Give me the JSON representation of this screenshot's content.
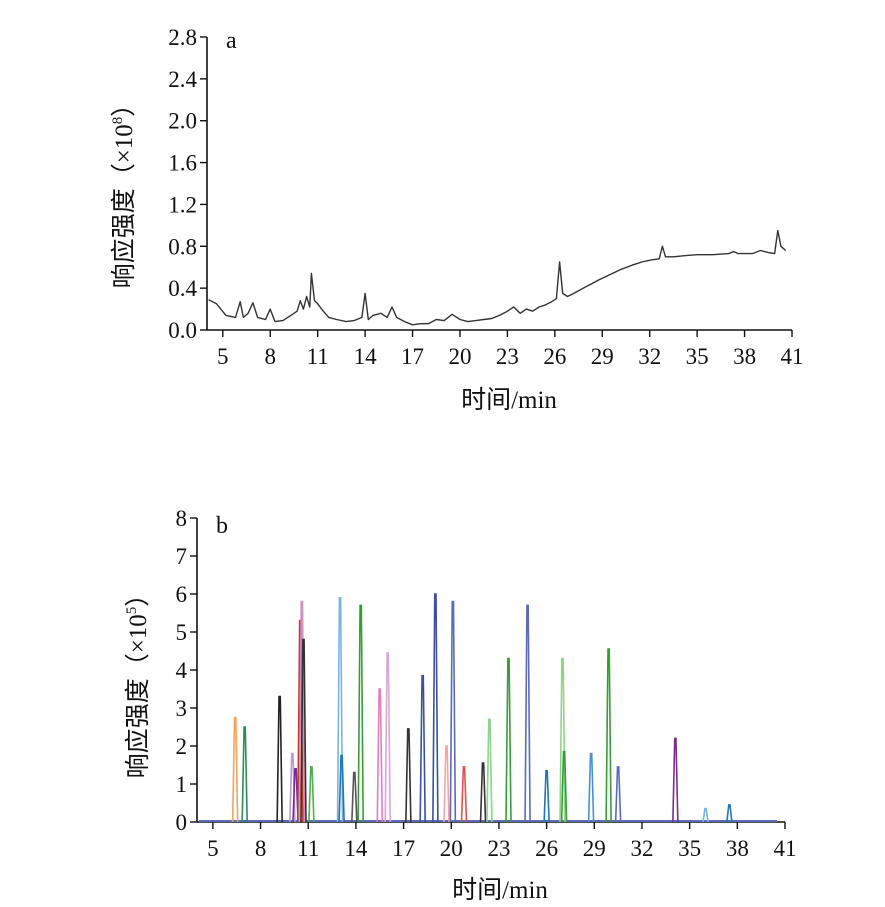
{
  "chart_data": [
    {
      "type": "line",
      "panel_label": "a",
      "xlabel": "时间/min",
      "ylabel": "响应强度（×10⁸）",
      "ylabel_prefix": "响应强度（×10",
      "ylabel_exp": "8",
      "ylabel_suffix": "）",
      "x_ticks": [
        "5",
        "8",
        "11",
        "14",
        "17",
        "20",
        "23",
        "26",
        "29",
        "32",
        "35",
        "38",
        "41"
      ],
      "y_ticks": [
        "0.0",
        "0.4",
        "0.8",
        "1.2",
        "1.6",
        "2.0",
        "2.4",
        "2.8"
      ],
      "xlim": [
        4,
        41
      ],
      "ylim": [
        0,
        2.8
      ],
      "grid": false,
      "color": "#333333",
      "series": [
        {
          "x": [
            4.1,
            4.6,
            5.2,
            5.8,
            6.1,
            6.3,
            6.6,
            6.9,
            7.2,
            7.7,
            8.0,
            8.3,
            8.8,
            9.3,
            9.7,
            9.9,
            10.1,
            10.3,
            10.5,
            10.6,
            10.8,
            11.0,
            11.3,
            11.7,
            12.2,
            12.8,
            13.3,
            13.8,
            14.0,
            14.2,
            14.5,
            15.0,
            15.4,
            15.7,
            16.0,
            16.5,
            17.0,
            17.5,
            18.0,
            18.5,
            19.0,
            19.5,
            20.0,
            20.5,
            21.0,
            21.5,
            22.0,
            22.5,
            23.0,
            23.4,
            23.8,
            24.2,
            24.6,
            25.0,
            25.4,
            25.8,
            26.1,
            26.3,
            26.5,
            26.8,
            27.2,
            27.8,
            28.3,
            28.8,
            29.5,
            30.2,
            30.9,
            31.5,
            32.1,
            32.6,
            32.8,
            33.0,
            33.5,
            34.2,
            35.0,
            36.0,
            37.0,
            37.3,
            37.6,
            38.5,
            39.0,
            39.5,
            39.9,
            40.1,
            40.3,
            40.6
          ],
          "y": [
            0.29,
            0.25,
            0.14,
            0.12,
            0.27,
            0.12,
            0.16,
            0.26,
            0.12,
            0.1,
            0.2,
            0.08,
            0.09,
            0.14,
            0.18,
            0.28,
            0.2,
            0.32,
            0.22,
            0.54,
            0.28,
            0.25,
            0.19,
            0.12,
            0.1,
            0.08,
            0.09,
            0.12,
            0.35,
            0.1,
            0.14,
            0.16,
            0.12,
            0.22,
            0.12,
            0.08,
            0.05,
            0.06,
            0.06,
            0.1,
            0.09,
            0.15,
            0.1,
            0.08,
            0.09,
            0.1,
            0.11,
            0.14,
            0.18,
            0.22,
            0.16,
            0.2,
            0.18,
            0.22,
            0.24,
            0.27,
            0.3,
            0.65,
            0.35,
            0.32,
            0.35,
            0.4,
            0.44,
            0.48,
            0.53,
            0.58,
            0.62,
            0.65,
            0.67,
            0.68,
            0.8,
            0.7,
            0.7,
            0.71,
            0.72,
            0.72,
            0.73,
            0.75,
            0.73,
            0.73,
            0.76,
            0.74,
            0.73,
            0.95,
            0.8,
            0.76
          ]
        }
      ]
    },
    {
      "type": "line",
      "panel_label": "b",
      "xlabel": "时间/min",
      "ylabel": "响应强度（×10⁵）",
      "ylabel_prefix": "响应强度（×10",
      "ylabel_exp": "5",
      "ylabel_suffix": "）",
      "x_ticks": [
        "5",
        "8",
        "11",
        "14",
        "17",
        "20",
        "23",
        "26",
        "29",
        "32",
        "35",
        "38",
        "41"
      ],
      "y_ticks": [
        "0",
        "1",
        "2",
        "3",
        "4",
        "5",
        "6",
        "7",
        "8"
      ],
      "xlim": [
        4,
        41
      ],
      "ylim": [
        0,
        8
      ],
      "grid": false,
      "series": [
        {
          "color": "#f5a25d",
          "x": [
            6.4
          ],
          "y": [
            2.75
          ]
        },
        {
          "color": "#2e8b57",
          "x": [
            7.0
          ],
          "y": [
            2.5
          ]
        },
        {
          "color": "#222222",
          "x": [
            9.2
          ],
          "y": [
            3.3
          ]
        },
        {
          "color": "#b89ad8",
          "x": [
            10.0
          ],
          "y": [
            1.8
          ]
        },
        {
          "color": "#7b2d8e",
          "x": [
            10.2
          ],
          "y": [
            1.4
          ]
        },
        {
          "color": "#c0392b",
          "x": [
            10.5
          ],
          "y": [
            5.3
          ]
        },
        {
          "color": "#d48ec0",
          "x": [
            10.6
          ],
          "y": [
            5.8
          ]
        },
        {
          "color": "#333333",
          "x": [
            10.7
          ],
          "y": [
            4.8
          ]
        },
        {
          "color": "#4caf50",
          "x": [
            11.2
          ],
          "y": [
            1.45
          ]
        },
        {
          "color": "#7bb3e0",
          "x": [
            13.0
          ],
          "y": [
            5.9
          ]
        },
        {
          "color": "#1f77b4",
          "x": [
            13.1
          ],
          "y": [
            1.75
          ]
        },
        {
          "color": "#555555",
          "x": [
            13.9
          ],
          "y": [
            1.3
          ]
        },
        {
          "color": "#3a9a3a",
          "x": [
            14.3
          ],
          "y": [
            5.7
          ]
        },
        {
          "color": "#e07fc0",
          "x": [
            15.5
          ],
          "y": [
            3.5
          ]
        },
        {
          "color": "#d6a8d8",
          "x": [
            16.0
          ],
          "y": [
            4.45
          ]
        },
        {
          "color": "#333333",
          "x": [
            17.3
          ],
          "y": [
            2.45
          ]
        },
        {
          "color": "#3d4f9f",
          "x": [
            18.2
          ],
          "y": [
            3.85
          ]
        },
        {
          "color": "#3d4f9f",
          "x": [
            19.0
          ],
          "y": [
            6.0
          ]
        },
        {
          "color": "#f4a6a6",
          "x": [
            19.7
          ],
          "y": [
            2.0
          ]
        },
        {
          "color": "#5b6bb5",
          "x": [
            20.1
          ],
          "y": [
            5.8
          ]
        },
        {
          "color": "#e05050",
          "x": [
            20.8
          ],
          "y": [
            1.45
          ]
        },
        {
          "color": "#333333",
          "x": [
            22.0
          ],
          "y": [
            1.55
          ]
        },
        {
          "color": "#8fd18f",
          "x": [
            22.4
          ],
          "y": [
            2.7
          ]
        },
        {
          "color": "#3a9a3a",
          "x": [
            23.6
          ],
          "y": [
            4.3
          ]
        },
        {
          "color": "#5b6bb5",
          "x": [
            24.8
          ],
          "y": [
            5.7
          ]
        },
        {
          "color": "#1f77b4",
          "x": [
            26.0
          ],
          "y": [
            1.35
          ]
        },
        {
          "color": "#8fd18f",
          "x": [
            27.0
          ],
          "y": [
            4.3
          ]
        },
        {
          "color": "#3a9a3a",
          "x": [
            27.1
          ],
          "y": [
            1.85
          ]
        },
        {
          "color": "#4a90d9",
          "x": [
            28.8
          ],
          "y": [
            1.8
          ]
        },
        {
          "color": "#3a9a3a",
          "x": [
            29.9
          ],
          "y": [
            4.55
          ]
        },
        {
          "color": "#5b6bb5",
          "x": [
            30.5
          ],
          "y": [
            1.45
          ]
        },
        {
          "color": "#7b2d8e",
          "x": [
            34.1
          ],
          "y": [
            2.2
          ]
        },
        {
          "color": "#7bb3e0",
          "x": [
            36.0
          ],
          "y": [
            0.35
          ]
        },
        {
          "color": "#1f77b4",
          "x": [
            37.5
          ],
          "y": [
            0.45
          ]
        }
      ]
    }
  ]
}
